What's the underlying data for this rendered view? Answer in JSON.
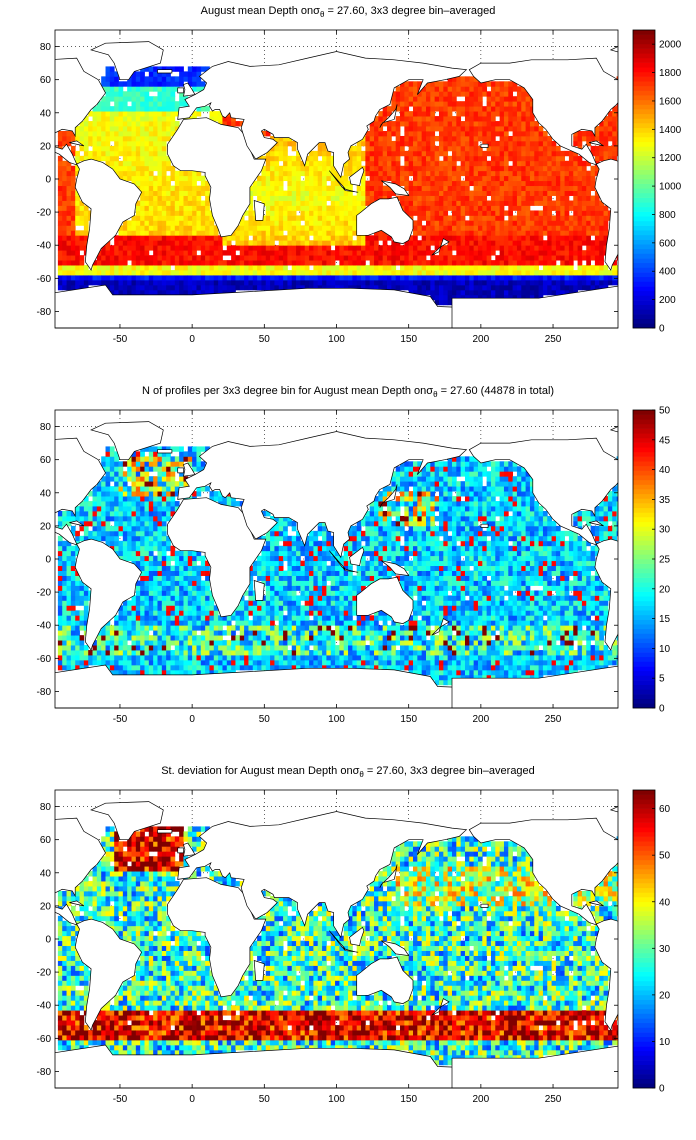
{
  "colors": {
    "ocean_scale": "jet",
    "land": "#ffffff",
    "coastline": "#000000",
    "background": "#ffffff"
  },
  "chart_data": [
    {
      "type": "heatmap",
      "title_prefix": "August mean Depth on",
      "title_symbol": "σ",
      "title_subscript": "θ",
      "title_suffix": " = 27.60, 3x3 degree bin–averaged",
      "xlim": [
        -95,
        295
      ],
      "ylim": [
        -90,
        90
      ],
      "xticks": [
        "-50",
        "0",
        "50",
        "100",
        "150",
        "200",
        "250"
      ],
      "yticks": [
        "80",
        "60",
        "40",
        "20",
        "0",
        "-20",
        "-40",
        "-60",
        "-80"
      ],
      "xtick_values": [
        -50,
        0,
        50,
        100,
        150,
        200,
        250
      ],
      "ytick_values": [
        80,
        60,
        40,
        20,
        0,
        -20,
        -40,
        -60,
        -80
      ],
      "grid": true,
      "colorbar": {
        "min": 0,
        "max": 2100,
        "ticks": [
          "2000",
          "1800",
          "1600",
          "1400",
          "1200",
          "1000",
          "800",
          "600",
          "400",
          "200",
          "0"
        ],
        "tick_values": [
          2000,
          1800,
          1600,
          1400,
          1200,
          1000,
          800,
          600,
          400,
          200,
          0
        ]
      },
      "field": "depth"
    },
    {
      "type": "heatmap",
      "title_prefix": "N of profiles per 3x3 degree bin for August mean Depth on",
      "title_symbol": "σ",
      "title_subscript": "θ",
      "title_suffix": " = 27.60 (44878 in total)",
      "xlim": [
        -95,
        295
      ],
      "ylim": [
        -90,
        90
      ],
      "xticks": [
        "-50",
        "0",
        "50",
        "100",
        "150",
        "200",
        "250"
      ],
      "yticks": [
        "80",
        "60",
        "40",
        "20",
        "0",
        "-20",
        "-40",
        "-60",
        "-80"
      ],
      "xtick_values": [
        -50,
        0,
        50,
        100,
        150,
        200,
        250
      ],
      "ytick_values": [
        80,
        60,
        40,
        20,
        0,
        -20,
        -40,
        -60,
        -80
      ],
      "grid": true,
      "colorbar": {
        "min": 0,
        "max": 50,
        "ticks": [
          "50",
          "45",
          "40",
          "35",
          "30",
          "25",
          "20",
          "15",
          "10",
          "5",
          "0"
        ],
        "tick_values": [
          50,
          45,
          40,
          35,
          30,
          25,
          20,
          15,
          10,
          5,
          0
        ]
      },
      "field": "count"
    },
    {
      "type": "heatmap",
      "title_prefix": "St. deviation for August mean Depth on",
      "title_symbol": "σ",
      "title_subscript": "θ",
      "title_suffix": " = 27.60, 3x3 degree bin–averaged",
      "xlim": [
        -95,
        295
      ],
      "ylim": [
        -90,
        90
      ],
      "xticks": [
        "-50",
        "0",
        "50",
        "100",
        "150",
        "200",
        "250"
      ],
      "yticks": [
        "80",
        "60",
        "40",
        "20",
        "0",
        "-20",
        "-40",
        "-60",
        "-80"
      ],
      "xtick_values": [
        -50,
        0,
        50,
        100,
        150,
        200,
        250
      ],
      "ytick_values": [
        80,
        60,
        40,
        20,
        0,
        -20,
        -40,
        -60,
        -80
      ],
      "grid": true,
      "colorbar": {
        "min": 0,
        "max": 64,
        "ticks": [
          "60",
          "50",
          "40",
          "30",
          "20",
          "10",
          "0"
        ],
        "tick_values": [
          60,
          50,
          40,
          30,
          20,
          10,
          0
        ]
      },
      "field": "std"
    }
  ]
}
